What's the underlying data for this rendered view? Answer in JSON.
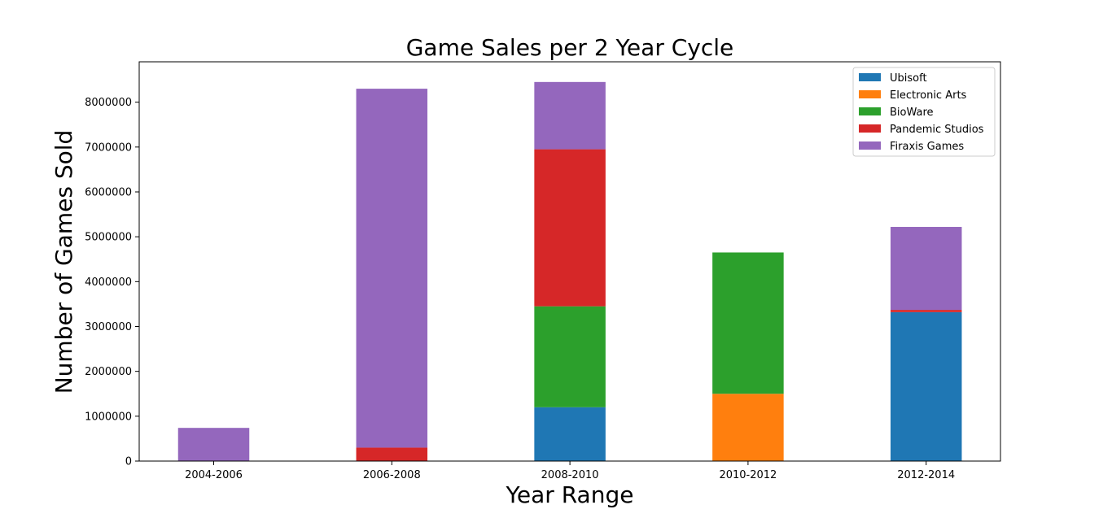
{
  "chart_data": {
    "type": "bar",
    "stacked": true,
    "title": "Game Sales per 2 Year Cycle",
    "xlabel": "Year Range",
    "ylabel": "Number of Games Sold",
    "categories": [
      "2004-2006",
      "2006-2008",
      "2008-2010",
      "2010-2012",
      "2012-2014"
    ],
    "ylim": [
      0,
      8900000
    ],
    "yticks": [
      0,
      1000000,
      2000000,
      3000000,
      4000000,
      5000000,
      6000000,
      7000000,
      8000000
    ],
    "ytick_labels": [
      "0",
      "1000000",
      "2000000",
      "3000000",
      "4000000",
      "5000000",
      "6000000",
      "7000000",
      "8000000"
    ],
    "legend_position": "top-right",
    "series": [
      {
        "name": "Ubisoft",
        "color": "#1f77b4",
        "values": [
          0,
          0,
          1200000,
          0,
          3320000
        ]
      },
      {
        "name": "Electronic Arts",
        "color": "#ff7f0e",
        "values": [
          0,
          0,
          0,
          1500000,
          0
        ]
      },
      {
        "name": "BioWare",
        "color": "#2ca02c",
        "values": [
          0,
          0,
          2250000,
          3150000,
          0
        ]
      },
      {
        "name": "Pandemic Studios",
        "color": "#d62728",
        "values": [
          0,
          300000,
          3500000,
          0,
          50000
        ]
      },
      {
        "name": "Firaxis Games",
        "color": "#9467bd",
        "values": [
          740000,
          8000000,
          1500000,
          0,
          1850000
        ]
      }
    ]
  }
}
